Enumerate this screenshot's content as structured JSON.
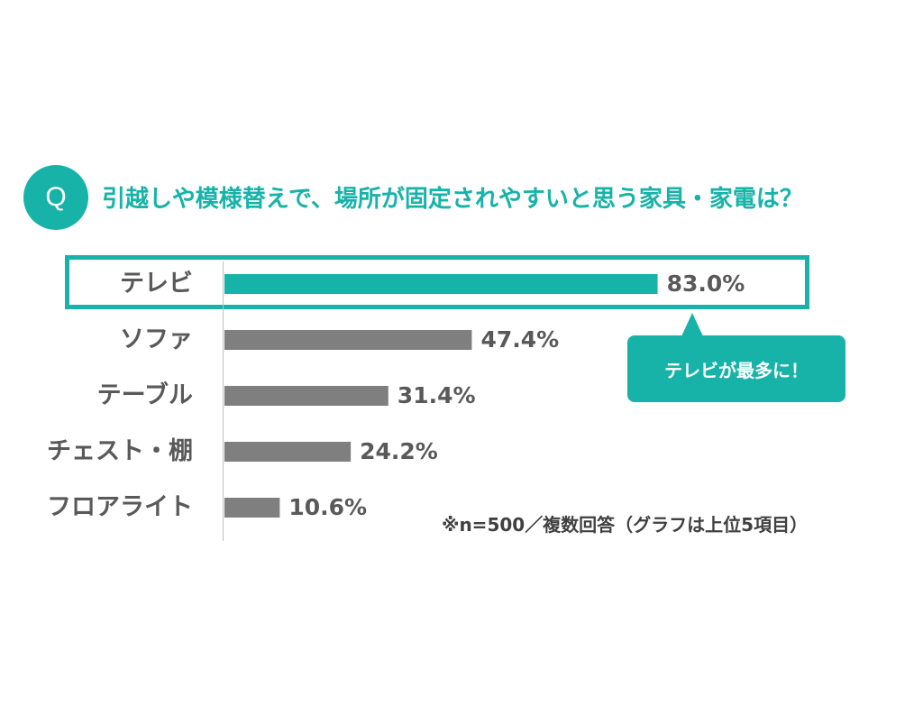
{
  "header": {
    "badge": "Q",
    "question": "引越しや模様替えで、場所が固定されやすいと思う家具・家電は？"
  },
  "chart_data": {
    "type": "bar",
    "orientation": "horizontal",
    "categories": [
      "テレビ",
      "ソファ",
      "テーブル",
      "チェスト・棚",
      "フロアライト"
    ],
    "values": [
      83.0,
      47.4,
      31.4,
      24.2,
      10.6
    ],
    "value_labels": [
      "83.0%",
      "47.4%",
      "31.4%",
      "24.2%",
      "10.6%"
    ],
    "xlim": [
      0,
      100
    ],
    "highlight_index": 0,
    "colors": {
      "highlight": "#17b3a8",
      "default": "#7f7f7f"
    }
  },
  "callout": {
    "text": "テレビが最多に！"
  },
  "note": "※n=500／複数回答（グラフは上位5項目）"
}
